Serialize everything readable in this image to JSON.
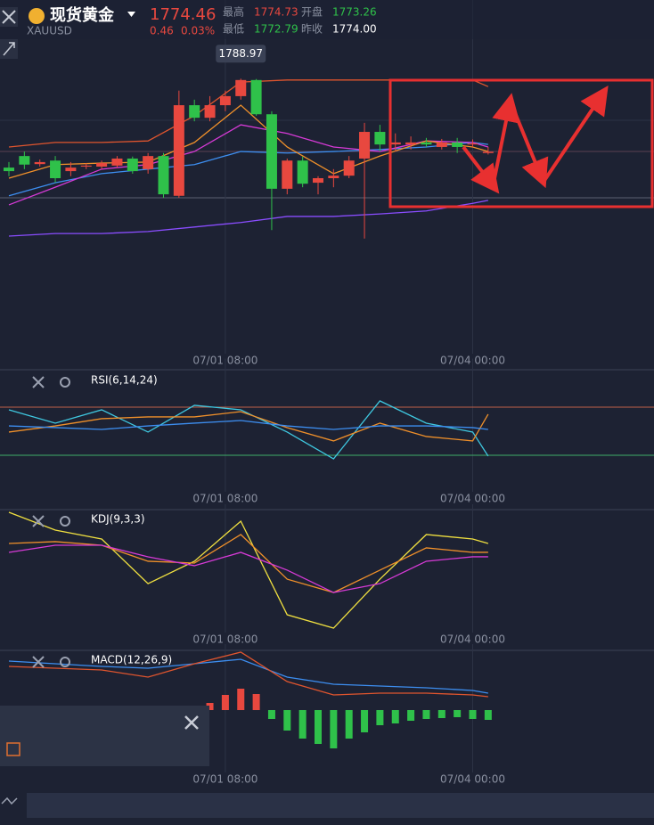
{
  "header": {
    "symbol_name": "现货黄金",
    "symbol_code": "XAUUSD",
    "price": "1774.46",
    "change": "0.46",
    "change_pct": "0.03%",
    "stats": [
      {
        "label": "最高",
        "value": "1774.73",
        "color": "#e8483f"
      },
      {
        "label": "开盘",
        "value": "1773.26",
        "color": "#2fc14a"
      },
      {
        "label": "最低",
        "value": "1772.79",
        "color": "#2fc14a"
      },
      {
        "label": "昨收",
        "value": "1774.00",
        "color": "#ffffff"
      }
    ]
  },
  "chart_data": [
    {
      "type": "candlestick",
      "up_color": "#e8483f",
      "down_color": "#2fc14a",
      "ylim": [
        1733.8,
        1804.6
      ],
      "max_label": 1788.97,
      "xticks": [
        {
          "value": 14,
          "label": "07/01 08:00"
        },
        {
          "value": 30,
          "label": "07/04 00:00"
        }
      ],
      "candles": [
        [
          1771.3,
          1772.4,
          1769.6,
          1770.6
        ],
        [
          1773.6,
          1774.5,
          1771.0,
          1771.9
        ],
        [
          1772.0,
          1772.9,
          1771.5,
          1772.4
        ],
        [
          1772.7,
          1773.6,
          1768.3,
          1769.2
        ],
        [
          1770.6,
          1772.4,
          1769.6,
          1771.3
        ],
        [
          1771.5,
          1772.2,
          1771.0,
          1771.7
        ],
        [
          1771.5,
          1772.7,
          1771.0,
          1772.2
        ],
        [
          1771.7,
          1773.6,
          1771.3,
          1773.1
        ],
        [
          1773.1,
          1773.5,
          1770.1,
          1770.6
        ],
        [
          1771.0,
          1774.2,
          1770.1,
          1773.6
        ],
        [
          1773.6,
          1774.2,
          1765.3,
          1766.0
        ],
        [
          1765.7,
          1786.6,
          1765.3,
          1783.7
        ],
        [
          1783.7,
          1784.8,
          1780.5,
          1781.2
        ],
        [
          1781.2,
          1785.5,
          1780.5,
          1783.7
        ],
        [
          1783.7,
          1786.6,
          1782.5,
          1785.5
        ],
        [
          1785.5,
          1788.97,
          1784.8,
          1788.7
        ],
        [
          1788.7,
          1788.9,
          1781.6,
          1781.9
        ],
        [
          1781.9,
          1782.5,
          1758.9,
          1767.1
        ],
        [
          1767.1,
          1773.1,
          1766.0,
          1772.7
        ],
        [
          1772.7,
          1773.5,
          1767.4,
          1768.1
        ],
        [
          1768.3,
          1769.6,
          1766.0,
          1769.2
        ],
        [
          1769.2,
          1771.0,
          1767.4,
          1769.7
        ],
        [
          1769.7,
          1773.6,
          1769.2,
          1772.7
        ],
        [
          1773.1,
          1780.2,
          1757.2,
          1778.4
        ],
        [
          1778.4,
          1779.8,
          1774.5,
          1775.9
        ],
        [
          1775.9,
          1778.1,
          1774.5,
          1776.3
        ],
        [
          1775.9,
          1777.5,
          1774.9,
          1776.3
        ],
        [
          1776.3,
          1777.2,
          1775.4,
          1775.9
        ],
        [
          1775.4,
          1777.0,
          1774.9,
          1776.3
        ],
        [
          1776.3,
          1777.2,
          1774.2,
          1775.4
        ],
        [
          1775.9,
          1776.9,
          1775.4,
          1776.1
        ],
        [
          1774.2,
          1775.4,
          1773.9,
          1774.46
        ]
      ],
      "x": [
        0,
        3,
        6,
        9,
        12,
        15,
        18,
        21,
        24,
        27,
        30,
        31
      ],
      "series": [
        {
          "color": "#e0552e",
          "values": [
            1775.4,
            1776.3,
            1776.3,
            1776.6,
            1781.6,
            1788.3,
            1788.7,
            1788.7,
            1788.7,
            1788.7,
            1788.7,
            1787.4
          ]
        },
        {
          "color": "#8a4dff",
          "values": [
            1757.7,
            1758.2,
            1758.2,
            1758.6,
            1759.5,
            1760.4,
            1761.6,
            1761.6,
            1762.1,
            1762.7,
            1764.2,
            1764.8
          ]
        },
        {
          "color": "#3d8ef0",
          "values": [
            1765.7,
            1768.3,
            1770.1,
            1771.0,
            1771.9,
            1774.5,
            1774.2,
            1774.5,
            1774.9,
            1775.4,
            1776.3,
            1775.9
          ]
        },
        {
          "color": "#d63ad6",
          "values": [
            1763.9,
            1767.4,
            1771.0,
            1771.9,
            1774.5,
            1779.8,
            1778.1,
            1775.4,
            1774.5,
            1776.6,
            1776.3,
            1775.4
          ]
        },
        {
          "color": "#f0902a",
          "values": [
            1769.2,
            1771.9,
            1772.2,
            1772.4,
            1776.3,
            1783.7,
            1775.4,
            1770.1,
            1773.6,
            1776.6,
            1775.4,
            1774.5
          ]
        }
      ]
    },
    {
      "type": "line",
      "title": "RSI(6,14,24)",
      "ylim": [
        0,
        100
      ],
      "x": [
        0,
        3,
        6,
        9,
        12,
        15,
        18,
        21,
        24,
        27,
        30,
        31
      ],
      "ref_lines": [
        {
          "value": 70,
          "color": "#c0604a"
        },
        {
          "value": 30,
          "color": "#3fae6a"
        }
      ],
      "series": [
        {
          "color": "#3fc8e0",
          "values": [
            67.8,
            56.7,
            67.8,
            49.3,
            71.5,
            67.8,
            49.3,
            27.0,
            75.2,
            56.7,
            49.3,
            29.3
          ]
        },
        {
          "color": "#f0902a",
          "values": [
            49.3,
            54.4,
            60.4,
            61.9,
            61.9,
            66.3,
            53.0,
            41.9,
            56.7,
            45.6,
            41.9,
            64.1
          ]
        },
        {
          "color": "#3d8ef0",
          "values": [
            54.4,
            53.0,
            51.5,
            54.4,
            56.7,
            58.9,
            54.4,
            51.5,
            54.4,
            54.4,
            53.0,
            51.5
          ]
        }
      ]
    },
    {
      "type": "line",
      "title": "KDJ(9,3,3)",
      "ylim": [
        0,
        100
      ],
      "x": [
        0,
        3,
        6,
        9,
        12,
        15,
        18,
        21,
        24,
        27,
        30,
        31
      ],
      "series": [
        {
          "color": "#f0e040",
          "values": [
            103.7,
            88.9,
            81.5,
            44.4,
            63.0,
            96.3,
            18.5,
            7.4,
            48.1,
            85.2,
            81.5,
            77.8
          ]
        },
        {
          "color": "#f0902a",
          "values": [
            77.8,
            79.3,
            76.3,
            63.0,
            61.5,
            85.2,
            48.1,
            37.0,
            55.6,
            74.1,
            70.4,
            70.4
          ]
        },
        {
          "color": "#d63ad6",
          "values": [
            70.4,
            76.3,
            76.3,
            66.7,
            59.3,
            70.4,
            55.6,
            37.0,
            44.4,
            63.0,
            66.7,
            66.7
          ]
        }
      ]
    },
    {
      "type": "combo",
      "title": "MACD(12,26,9)",
      "ylim": [
        -5,
        6
      ],
      "x": [
        0,
        3,
        6,
        9,
        12,
        15,
        18,
        21,
        24,
        27,
        30,
        31
      ],
      "series": [
        {
          "color": "#3d8ef0",
          "values": [
            5.5,
            5.2,
            4.9,
            4.7,
            5.2,
            5.7,
            3.7,
            2.9,
            2.7,
            2.5,
            2.2,
            1.9
          ]
        },
        {
          "color": "#e0552e",
          "values": [
            4.9,
            4.7,
            4.5,
            3.7,
            5.2,
            6.5,
            3.2,
            1.7,
            1.9,
            1.9,
            1.7,
            1.5
          ]
        }
      ],
      "histogram": [
        null,
        null,
        null,
        null,
        null,
        null,
        null,
        null,
        null,
        null,
        null,
        null,
        null,
        0.8,
        1.7,
        2.4,
        1.8,
        -1.0,
        -2.3,
        -3.2,
        -3.8,
        -4.3,
        -3.2,
        -2.5,
        -1.7,
        -1.5,
        -1.2,
        -1.0,
        -0.9,
        -0.8,
        -1.0,
        -1.1
      ]
    }
  ]
}
